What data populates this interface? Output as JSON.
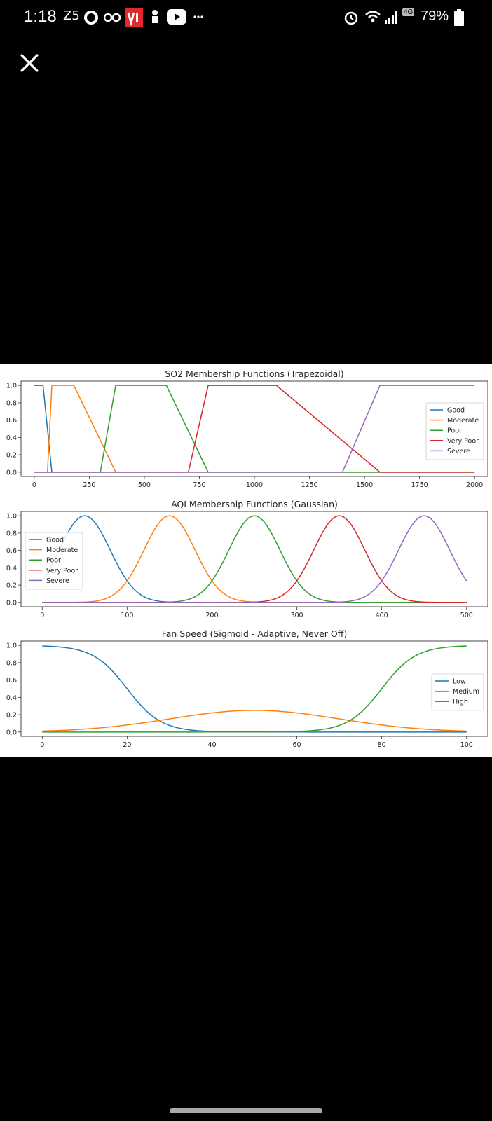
{
  "status_bar": {
    "time": "1:18",
    "notification_text": "Z5",
    "network_badge": "4G",
    "battery": "79%"
  },
  "colors": {
    "c0": "#1f77b4",
    "c1": "#ff7f0e",
    "c2": "#2ca02c",
    "c3": "#d62728",
    "c4": "#9467bd"
  },
  "chart_data": [
    {
      "type": "line",
      "title": "SO2 Membership Functions (Trapezoidal)",
      "xlim": [
        -60,
        2060
      ],
      "ylim": [
        -0.05,
        1.05
      ],
      "xticks": [
        0,
        250,
        500,
        750,
        1000,
        1250,
        1500,
        1750,
        2000
      ],
      "yticks": [
        0.0,
        0.2,
        0.4,
        0.6,
        0.8,
        1.0
      ],
      "legend_position": "center-right",
      "series": [
        {
          "name": "Good",
          "color": "#1f77b4",
          "x": [
            0,
            40,
            80,
            2000
          ],
          "y": [
            1,
            1,
            0,
            0
          ]
        },
        {
          "name": "Moderate",
          "color": "#ff7f0e",
          "x": [
            0,
            60,
            80,
            180,
            370,
            2000
          ],
          "y": [
            0,
            0,
            1,
            1,
            0,
            0
          ]
        },
        {
          "name": "Poor",
          "color": "#2ca02c",
          "x": [
            0,
            300,
            370,
            600,
            790,
            2000
          ],
          "y": [
            0,
            0,
            1,
            1,
            0,
            0
          ]
        },
        {
          "name": "Very Poor",
          "color": "#d62728",
          "x": [
            0,
            700,
            790,
            1100,
            1570,
            2000
          ],
          "y": [
            0,
            0,
            1,
            1,
            0,
            0
          ]
        },
        {
          "name": "Severe",
          "color": "#9467bd",
          "x": [
            0,
            1400,
            1570,
            2000
          ],
          "y": [
            0,
            0,
            1,
            1
          ]
        }
      ]
    },
    {
      "type": "line",
      "title": "AQI Membership Functions (Gaussian)",
      "xlim": [
        -25,
        525
      ],
      "ylim": [
        -0.05,
        1.05
      ],
      "xticks": [
        0,
        100,
        200,
        300,
        400,
        500
      ],
      "yticks": [
        0.0,
        0.2,
        0.4,
        0.6,
        0.8,
        1.0
      ],
      "legend_position": "center-left",
      "function": "gaussian",
      "x_range": [
        0,
        500
      ],
      "series": [
        {
          "name": "Good",
          "color": "#1f77b4",
          "mean": 50,
          "sigma": 30
        },
        {
          "name": "Moderate",
          "color": "#ff7f0e",
          "mean": 150,
          "sigma": 30
        },
        {
          "name": "Poor",
          "color": "#2ca02c",
          "mean": 250,
          "sigma": 30
        },
        {
          "name": "Very Poor",
          "color": "#d62728",
          "mean": 350,
          "sigma": 30
        },
        {
          "name": "Severe",
          "color": "#9467bd",
          "mean": 450,
          "sigma": 30
        }
      ]
    },
    {
      "type": "line",
      "title": "Fan Speed (Sigmoid - Adaptive, Never Off)",
      "xlim": [
        -5,
        105
      ],
      "ylim": [
        -0.05,
        1.05
      ],
      "xticks": [
        0,
        20,
        40,
        60,
        80,
        100
      ],
      "yticks": [
        0.0,
        0.2,
        0.4,
        0.6,
        0.8,
        1.0
      ],
      "legend_position": "center-right",
      "x_range": [
        0,
        100
      ],
      "series": [
        {
          "name": "Low",
          "color": "#1f77b4",
          "function": "sigmoid-decreasing",
          "center": 20,
          "slope": 0.25
        },
        {
          "name": "Medium",
          "color": "#ff7f0e",
          "function": "gaussian-scaled",
          "mean": 50,
          "sigma": 20,
          "peak": 0.25
        },
        {
          "name": "High",
          "color": "#2ca02c",
          "function": "sigmoid-increasing",
          "center": 80,
          "slope": 0.25
        }
      ]
    }
  ]
}
